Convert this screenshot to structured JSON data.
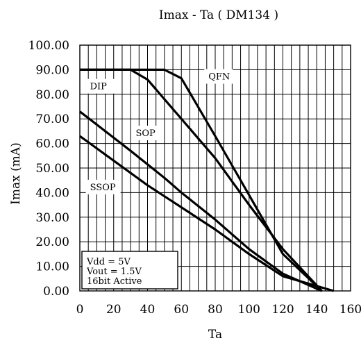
{
  "chart_data": {
    "type": "line",
    "title": "Imax - Ta ( DM134 )",
    "xlabel": "Ta",
    "ylabel": "Imax (mA)",
    "xlim": [
      0,
      160
    ],
    "ylim": [
      0,
      100
    ],
    "x_ticks": [
      "0",
      "20",
      "40",
      "60",
      "80",
      "100",
      "120",
      "140",
      "160"
    ],
    "y_ticks": [
      "0.00",
      "10.00",
      "20.00",
      "30.00",
      "40.00",
      "50.00",
      "60.00",
      "70.00",
      "80.00",
      "90.00",
      "100.00"
    ],
    "x_grid_step": 5,
    "y_grid_step": 10,
    "grid": true,
    "series": [
      {
        "name": "QFN",
        "points": [
          [
            0,
            90
          ],
          [
            50,
            90
          ],
          [
            60,
            86.5
          ],
          [
            80,
            63
          ],
          [
            100,
            39
          ],
          [
            120,
            15
          ],
          [
            143,
            0
          ]
        ]
      },
      {
        "name": "DIP",
        "points": [
          [
            0,
            90
          ],
          [
            30,
            90
          ],
          [
            40,
            86
          ],
          [
            60,
            70
          ],
          [
            80,
            54
          ],
          [
            100,
            35
          ],
          [
            120,
            17
          ],
          [
            143,
            0
          ]
        ]
      },
      {
        "name": "SOP",
        "points": [
          [
            0,
            73
          ],
          [
            30,
            57
          ],
          [
            50,
            46
          ],
          [
            60,
            40
          ],
          [
            80,
            29
          ],
          [
            100,
            17
          ],
          [
            120,
            7
          ],
          [
            143,
            0
          ]
        ]
      },
      {
        "name": "SSOP",
        "points": [
          [
            0,
            63
          ],
          [
            20,
            53
          ],
          [
            40,
            43
          ],
          [
            60,
            34
          ],
          [
            80,
            25
          ],
          [
            100,
            15
          ],
          [
            120,
            6
          ],
          [
            150,
            0
          ]
        ]
      }
    ],
    "annotations": {
      "conditions": [
        "Vdd = 5V",
        "Vout = 1.5V",
        "16bit Active"
      ]
    }
  }
}
